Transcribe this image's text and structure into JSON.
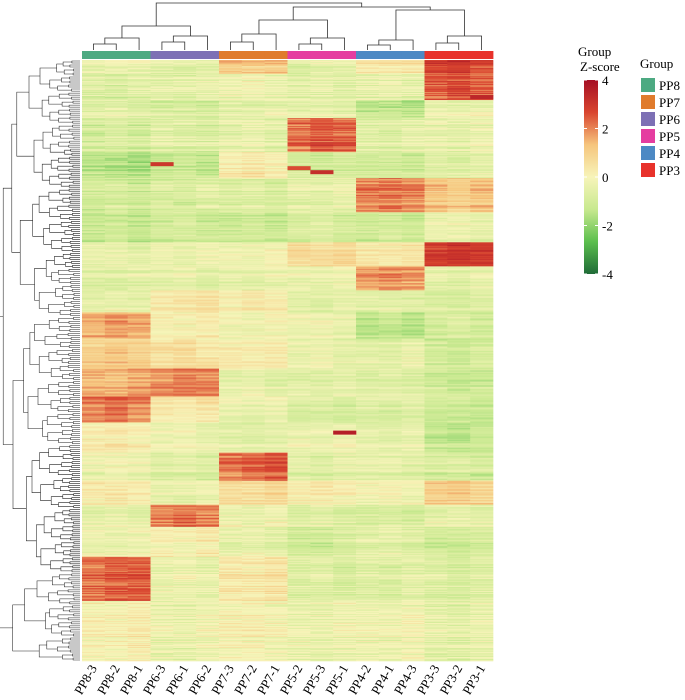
{
  "chart_data": {
    "type": "heatmap",
    "title": "",
    "columns": [
      "PP8-3",
      "PP8-2",
      "PP8-1",
      "PP6-3",
      "PP6-1",
      "PP6-2",
      "PP7-3",
      "PP7-2",
      "PP7-1",
      "PP5-2",
      "PP5-3",
      "PP5-1",
      "PP4-2",
      "PP4-1",
      "PP4-3",
      "PP3-3",
      "PP3-2",
      "PP3-1"
    ],
    "column_groups": [
      "PP8",
      "PP8",
      "PP8",
      "PP6",
      "PP6",
      "PP6",
      "PP7",
      "PP7",
      "PP7",
      "PP5",
      "PP5",
      "PP5",
      "PP4",
      "PP4",
      "PP4",
      "PP3",
      "PP3",
      "PP3"
    ],
    "annotation_label": "Group",
    "colorbar": {
      "title": "Z-score",
      "ticks": [
        4,
        2,
        0,
        -2,
        -4
      ],
      "range": [
        -4,
        4
      ],
      "colors": [
        "#1f6b37",
        "#5cbf4e",
        "#c8e98f",
        "#f7f4b9",
        "#f6c57d",
        "#d9452f",
        "#a50f24"
      ]
    },
    "legend": {
      "title": "Group",
      "items": [
        {
          "label": "PP8",
          "color": "#4daa82"
        },
        {
          "label": "PP7",
          "color": "#e07b2c"
        },
        {
          "label": "PP6",
          "color": "#7d70b5"
        },
        {
          "label": "PP5",
          "color": "#e53da0"
        },
        {
          "label": "PP4",
          "color": "#4d89c4"
        },
        {
          "label": "PP3",
          "color": "#e8322b"
        }
      ]
    },
    "row_count": 600,
    "row_blocks": [
      {
        "rows": 14,
        "z": [
          -0.3,
          -0.2,
          -0.3,
          -0.5,
          -0.6,
          -0.5,
          1.2,
          1.1,
          1.3,
          -0.6,
          -0.4,
          -0.5,
          0.4,
          0.3,
          0.5,
          2.8,
          2.9,
          2.6
        ]
      },
      {
        "rows": 26,
        "z": [
          -0.8,
          -0.9,
          -0.7,
          -0.6,
          -0.6,
          -0.4,
          -0.3,
          -0.2,
          -0.4,
          -0.6,
          -0.5,
          -0.7,
          -0.5,
          -0.4,
          -0.6,
          2.4,
          2.6,
          2.3
        ]
      },
      {
        "rows": 18,
        "z": [
          -0.5,
          -0.4,
          -0.6,
          -0.8,
          -0.7,
          -0.9,
          -0.4,
          -0.5,
          -0.3,
          -0.4,
          -0.3,
          -0.5,
          -1.3,
          -1.2,
          -1.4,
          -0.2,
          -0.3,
          -0.1
        ]
      },
      {
        "rows": 34,
        "z": [
          -0.9,
          -0.8,
          -1.0,
          -0.6,
          -0.7,
          -0.8,
          -0.5,
          -0.4,
          -0.6,
          2.2,
          2.5,
          2.3,
          -0.6,
          -0.7,
          -0.5,
          -0.4,
          -0.5,
          -0.3
        ]
      },
      {
        "rows": 26,
        "z": [
          -1.4,
          -1.5,
          -1.6,
          -1.2,
          -1.1,
          -1.3,
          0.3,
          0.4,
          0.2,
          -0.9,
          -1.0,
          -0.8,
          -1.0,
          -0.9,
          -1.1,
          -0.6,
          -0.7,
          -0.5
        ]
      },
      {
        "rows": 34,
        "z": [
          -1.0,
          -0.9,
          -1.1,
          -0.8,
          -0.9,
          -0.7,
          -0.8,
          -0.7,
          -0.9,
          -0.5,
          -0.6,
          -0.4,
          2.0,
          2.1,
          1.9,
          1.2,
          1.0,
          1.3
        ]
      },
      {
        "rows": 30,
        "z": [
          -1.3,
          -1.2,
          -1.4,
          -1.1,
          -1.0,
          -1.2,
          -1.2,
          -1.1,
          -1.3,
          -0.9,
          -0.8,
          -1.0,
          -1.1,
          -1.0,
          -1.2,
          -0.4,
          -0.3,
          -0.5
        ]
      },
      {
        "rows": 24,
        "z": [
          -0.6,
          -0.5,
          -0.7,
          -0.4,
          -0.5,
          -0.3,
          -0.3,
          -0.4,
          -0.2,
          0.6,
          0.5,
          0.7,
          0.2,
          0.1,
          0.3,
          2.7,
          2.9,
          2.8
        ]
      },
      {
        "rows": 24,
        "z": [
          -0.6,
          -0.7,
          -0.5,
          -0.5,
          -0.4,
          -0.6,
          -0.4,
          -0.5,
          -0.3,
          -0.3,
          -0.4,
          -0.2,
          1.7,
          1.9,
          1.8,
          -0.5,
          -0.6,
          -0.4
        ]
      },
      {
        "rows": 22,
        "z": [
          -0.5,
          -0.4,
          -0.6,
          0.3,
          0.4,
          0.5,
          0.2,
          0.3,
          0.1,
          -0.6,
          -0.7,
          -0.5,
          -0.6,
          -0.5,
          -0.7,
          -0.8,
          -0.9,
          -0.7
        ]
      },
      {
        "rows": 26,
        "z": [
          1.6,
          1.8,
          1.7,
          0.2,
          0.1,
          0.3,
          -0.1,
          -0.2,
          0.0,
          -0.2,
          -0.1,
          -0.3,
          -1.3,
          -1.2,
          -1.4,
          -0.8,
          -0.7,
          -0.9
        ]
      },
      {
        "rows": 30,
        "z": [
          1.0,
          1.1,
          0.9,
          0.5,
          0.6,
          0.4,
          0.2,
          0.1,
          0.3,
          -0.4,
          -0.3,
          -0.5,
          -0.5,
          -0.6,
          -0.4,
          -1.0,
          -1.1,
          -0.9
        ]
      },
      {
        "rows": 28,
        "z": [
          1.5,
          1.4,
          1.6,
          2.0,
          2.2,
          2.1,
          -0.4,
          -0.3,
          -0.5,
          -0.5,
          -0.6,
          -0.4,
          -0.6,
          -0.5,
          -0.7,
          -1.0,
          -1.2,
          -1.1
        ]
      },
      {
        "rows": 26,
        "z": [
          2.1,
          2.3,
          2.0,
          0.4,
          0.3,
          0.5,
          -0.3,
          -0.4,
          -0.2,
          -0.8,
          -0.7,
          -0.9,
          -0.7,
          -0.8,
          -0.6,
          -1.1,
          -1.0,
          -1.2
        ]
      },
      {
        "rows": 30,
        "z": [
          0.3,
          0.4,
          0.2,
          -0.2,
          -0.1,
          -0.3,
          -0.5,
          -0.6,
          -0.4,
          -0.2,
          -0.3,
          -0.1,
          -0.4,
          -0.5,
          -0.3,
          -1.2,
          -1.3,
          -1.1
        ]
      },
      {
        "rows": 28,
        "z": [
          -0.3,
          -0.2,
          -0.4,
          -0.7,
          -0.6,
          -0.8,
          2.1,
          2.3,
          2.5,
          -0.6,
          -0.7,
          -0.5,
          -0.5,
          -0.4,
          -0.6,
          -0.9,
          -0.8,
          -1.0
        ]
      },
      {
        "rows": 24,
        "z": [
          0.2,
          0.3,
          0.1,
          -0.4,
          -0.5,
          -0.3,
          0.6,
          0.5,
          0.7,
          0.1,
          0.2,
          0.0,
          -0.2,
          -0.1,
          -0.3,
          0.9,
          1.0,
          0.8
        ]
      },
      {
        "rows": 22,
        "z": [
          -0.4,
          -0.3,
          -0.5,
          2.0,
          2.3,
          2.1,
          -0.2,
          -0.3,
          -0.1,
          -0.6,
          -0.5,
          -0.7,
          -0.8,
          -0.7,
          -0.9,
          -0.4,
          -0.3,
          -0.5
        ]
      },
      {
        "rows": 30,
        "z": [
          -0.2,
          -0.3,
          -0.1,
          0.2,
          0.1,
          0.3,
          -0.4,
          -0.3,
          -0.5,
          -0.9,
          -1.0,
          -0.8,
          -0.5,
          -0.4,
          -0.6,
          -0.9,
          -1.0,
          -0.8
        ]
      },
      {
        "rows": 44,
        "z": [
          2.2,
          2.4,
          2.5,
          -0.3,
          -0.2,
          -0.4,
          0.4,
          0.3,
          0.5,
          -0.7,
          -0.6,
          -0.8,
          -0.6,
          -0.7,
          -0.5,
          -0.7,
          -0.8,
          -0.6
        ]
      },
      {
        "rows": 60,
        "z": [
          0.1,
          0.0,
          0.2,
          -0.3,
          -0.4,
          -0.2,
          0.0,
          0.1,
          -0.1,
          -0.3,
          -0.4,
          -0.2,
          -0.2,
          -0.3,
          -0.1,
          -0.5,
          -0.6,
          -0.4
        ]
      }
    ]
  }
}
